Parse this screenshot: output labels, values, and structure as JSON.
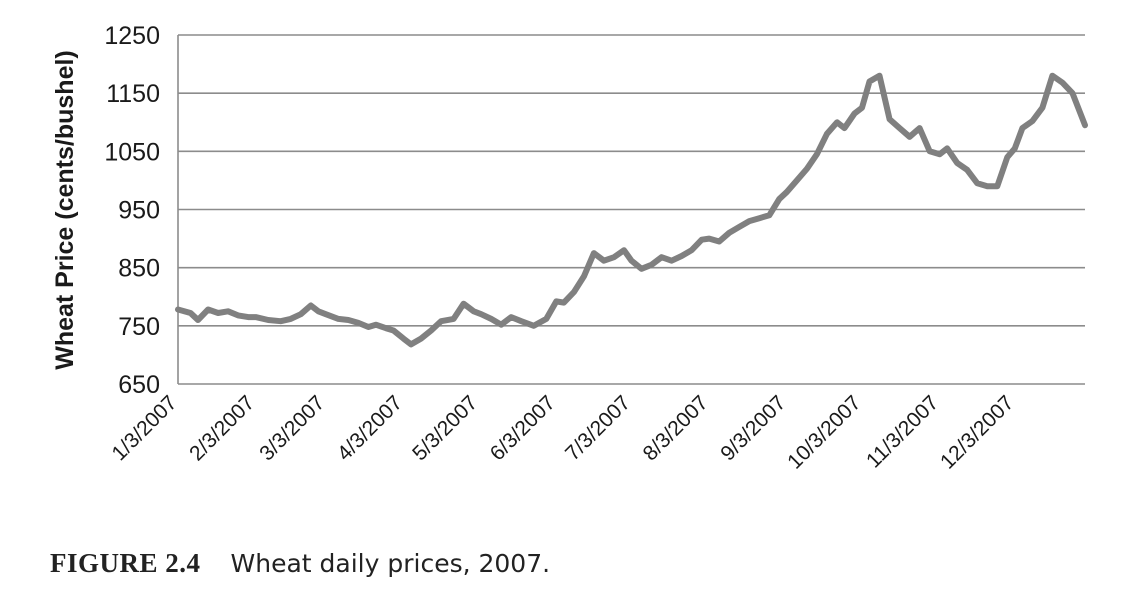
{
  "figure": {
    "label": "FIGURE 2.4",
    "caption": "Wheat daily prices, 2007."
  },
  "chart_data": {
    "type": "line",
    "title": "",
    "ylabel": "Wheat Price (cents/bushel)",
    "xlabel": "",
    "ylim": [
      650,
      1250
    ],
    "yticks": [
      650,
      750,
      850,
      950,
      1050,
      1150,
      1250
    ],
    "grid": "horizontal",
    "line_color": "#808080",
    "xticks": [
      "1/3/2007",
      "2/3/2007",
      "3/3/2007",
      "4/3/2007",
      "5/3/2007",
      "6/3/2007",
      "7/3/2007",
      "8/3/2007",
      "9/3/2007",
      "10/3/2007",
      "11/3/2007",
      "12/3/2007"
    ],
    "series": [
      {
        "x": [
          "1/3/2007",
          "1/8/2007",
          "1/11/2007",
          "1/15/2007",
          "1/19/2007",
          "1/23/2007",
          "1/27/2007",
          "1/31/2007",
          "2/3/2007",
          "2/8/2007",
          "2/13/2007",
          "2/17/2007",
          "2/21/2007",
          "2/25/2007",
          "2/28/2007",
          "3/3/2007",
          "3/8/2007",
          "3/12/2007",
          "3/16/2007",
          "3/20/2007",
          "3/23/2007",
          "3/27/2007",
          "3/30/2007",
          "4/3/2007",
          "4/6/2007",
          "4/10/2007",
          "4/14/2007",
          "4/18/2007",
          "4/23/2007",
          "4/27/2007",
          "5/1/2007",
          "5/4/2007",
          "5/8/2007",
          "5/12/2007",
          "5/16/2007",
          "5/20/2007",
          "5/25/2007",
          "5/30/2007",
          "6/3/2007",
          "6/6/2007",
          "6/10/2007",
          "6/14/2007",
          "6/18/2007",
          "6/22/2007",
          "6/26/2007",
          "6/30/2007",
          "7/3/2007",
          "7/7/2007",
          "7/11/2007",
          "7/15/2007",
          "7/19/2007",
          "7/23/2007",
          "7/27/2007",
          "7/31/2007",
          "8/3/2007",
          "8/7/2007",
          "8/11/2007",
          "8/15/2007",
          "8/19/2007",
          "8/23/2007",
          "8/27/2007",
          "8/31/2007",
          "9/3/2007",
          "9/7/2007",
          "9/11/2007",
          "9/15/2007",
          "9/19/2007",
          "9/23/2007",
          "9/26/2007",
          "9/30/2007",
          "10/3/2007",
          "10/6/2007",
          "10/10/2007",
          "10/14/2007",
          "10/18/2007",
          "10/22/2007",
          "10/26/2007",
          "10/30/2007",
          "11/3/2007",
          "11/6/2007",
          "11/10/2007",
          "11/14/2007",
          "11/18/2007",
          "11/22/2007",
          "11/26/2007",
          "11/30/2007",
          "12/3/2007",
          "12/6/2007",
          "12/10/2007",
          "12/14/2007",
          "12/18/2007",
          "12/22/2007",
          "12/26/2007",
          "12/31/2007"
        ],
        "values": [
          778,
          772,
          760,
          778,
          772,
          775,
          768,
          765,
          765,
          760,
          758,
          762,
          770,
          785,
          775,
          770,
          762,
          760,
          755,
          748,
          752,
          746,
          742,
          728,
          718,
          728,
          742,
          758,
          762,
          788,
          775,
          770,
          762,
          752,
          765,
          758,
          750,
          762,
          792,
          790,
          808,
          835,
          875,
          862,
          868,
          880,
          862,
          848,
          855,
          868,
          862,
          870,
          880,
          898,
          900,
          895,
          910,
          920,
          930,
          935,
          940,
          968,
          980,
          1000,
          1020,
          1045,
          1080,
          1100,
          1090,
          1115,
          1125,
          1170,
          1180,
          1105,
          1090,
          1075,
          1090,
          1050,
          1045,
          1055,
          1030,
          1018,
          995,
          990,
          990,
          1040,
          1055,
          1090,
          1102,
          1125,
          1180,
          1168,
          1150,
          1095
        ]
      }
    ]
  }
}
